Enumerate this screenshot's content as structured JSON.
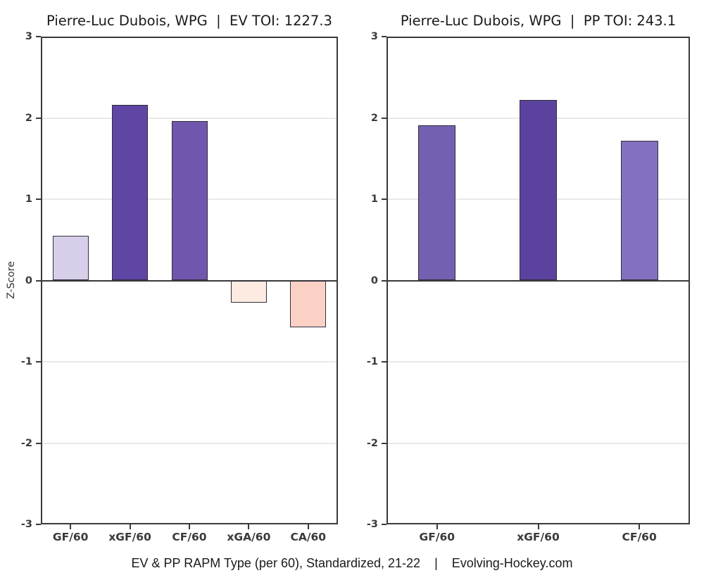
{
  "figure": {
    "background": "#ffffff",
    "caption": "EV & PP RAPM Type (per 60), Standardized, 21-22    |    Evolving-Hockey.com"
  },
  "style": {
    "frame_color": "#3a3a3a",
    "gridline_color": "#e9e9e9",
    "zero_line_color": "#3a3a3a",
    "bar_edge_color": "#2f2f3a",
    "tick_label_color": "#3a3a3a",
    "title_color": "#1a1a1a"
  },
  "chart_data": [
    {
      "type": "bar",
      "title": "Pierre-Luc Dubois, WPG  |  EV TOI: 1227.3",
      "ylabel": "Z-Score",
      "ylim": [
        -3,
        3
      ],
      "yticks": [
        3,
        2,
        1,
        0,
        -1,
        -2,
        -3
      ],
      "grid": true,
      "legend": "none",
      "categories": [
        "GF/60",
        "xGF/60",
        "CF/60",
        "xGA/60",
        "CA/60"
      ],
      "values": [
        0.55,
        2.16,
        1.96,
        -0.27,
        -0.58
      ],
      "bar_colors": [
        "#d7cfe9",
        "#5f45a4",
        "#7156ae",
        "#fdeae1",
        "#fcd1c5"
      ]
    },
    {
      "type": "bar",
      "title": "Pierre-Luc Dubois, WPG  |  PP TOI: 243.1",
      "ylabel": "",
      "ylim": [
        -3,
        3
      ],
      "yticks": [
        3,
        2,
        1,
        0,
        -1,
        -2,
        -3
      ],
      "grid": true,
      "legend": "none",
      "categories": [
        "GF/60",
        "xGF/60",
        "CF/60"
      ],
      "values": [
        1.91,
        2.22,
        1.72
      ],
      "bar_colors": [
        "#7460b0",
        "#5b429f",
        "#8470c0"
      ]
    }
  ]
}
